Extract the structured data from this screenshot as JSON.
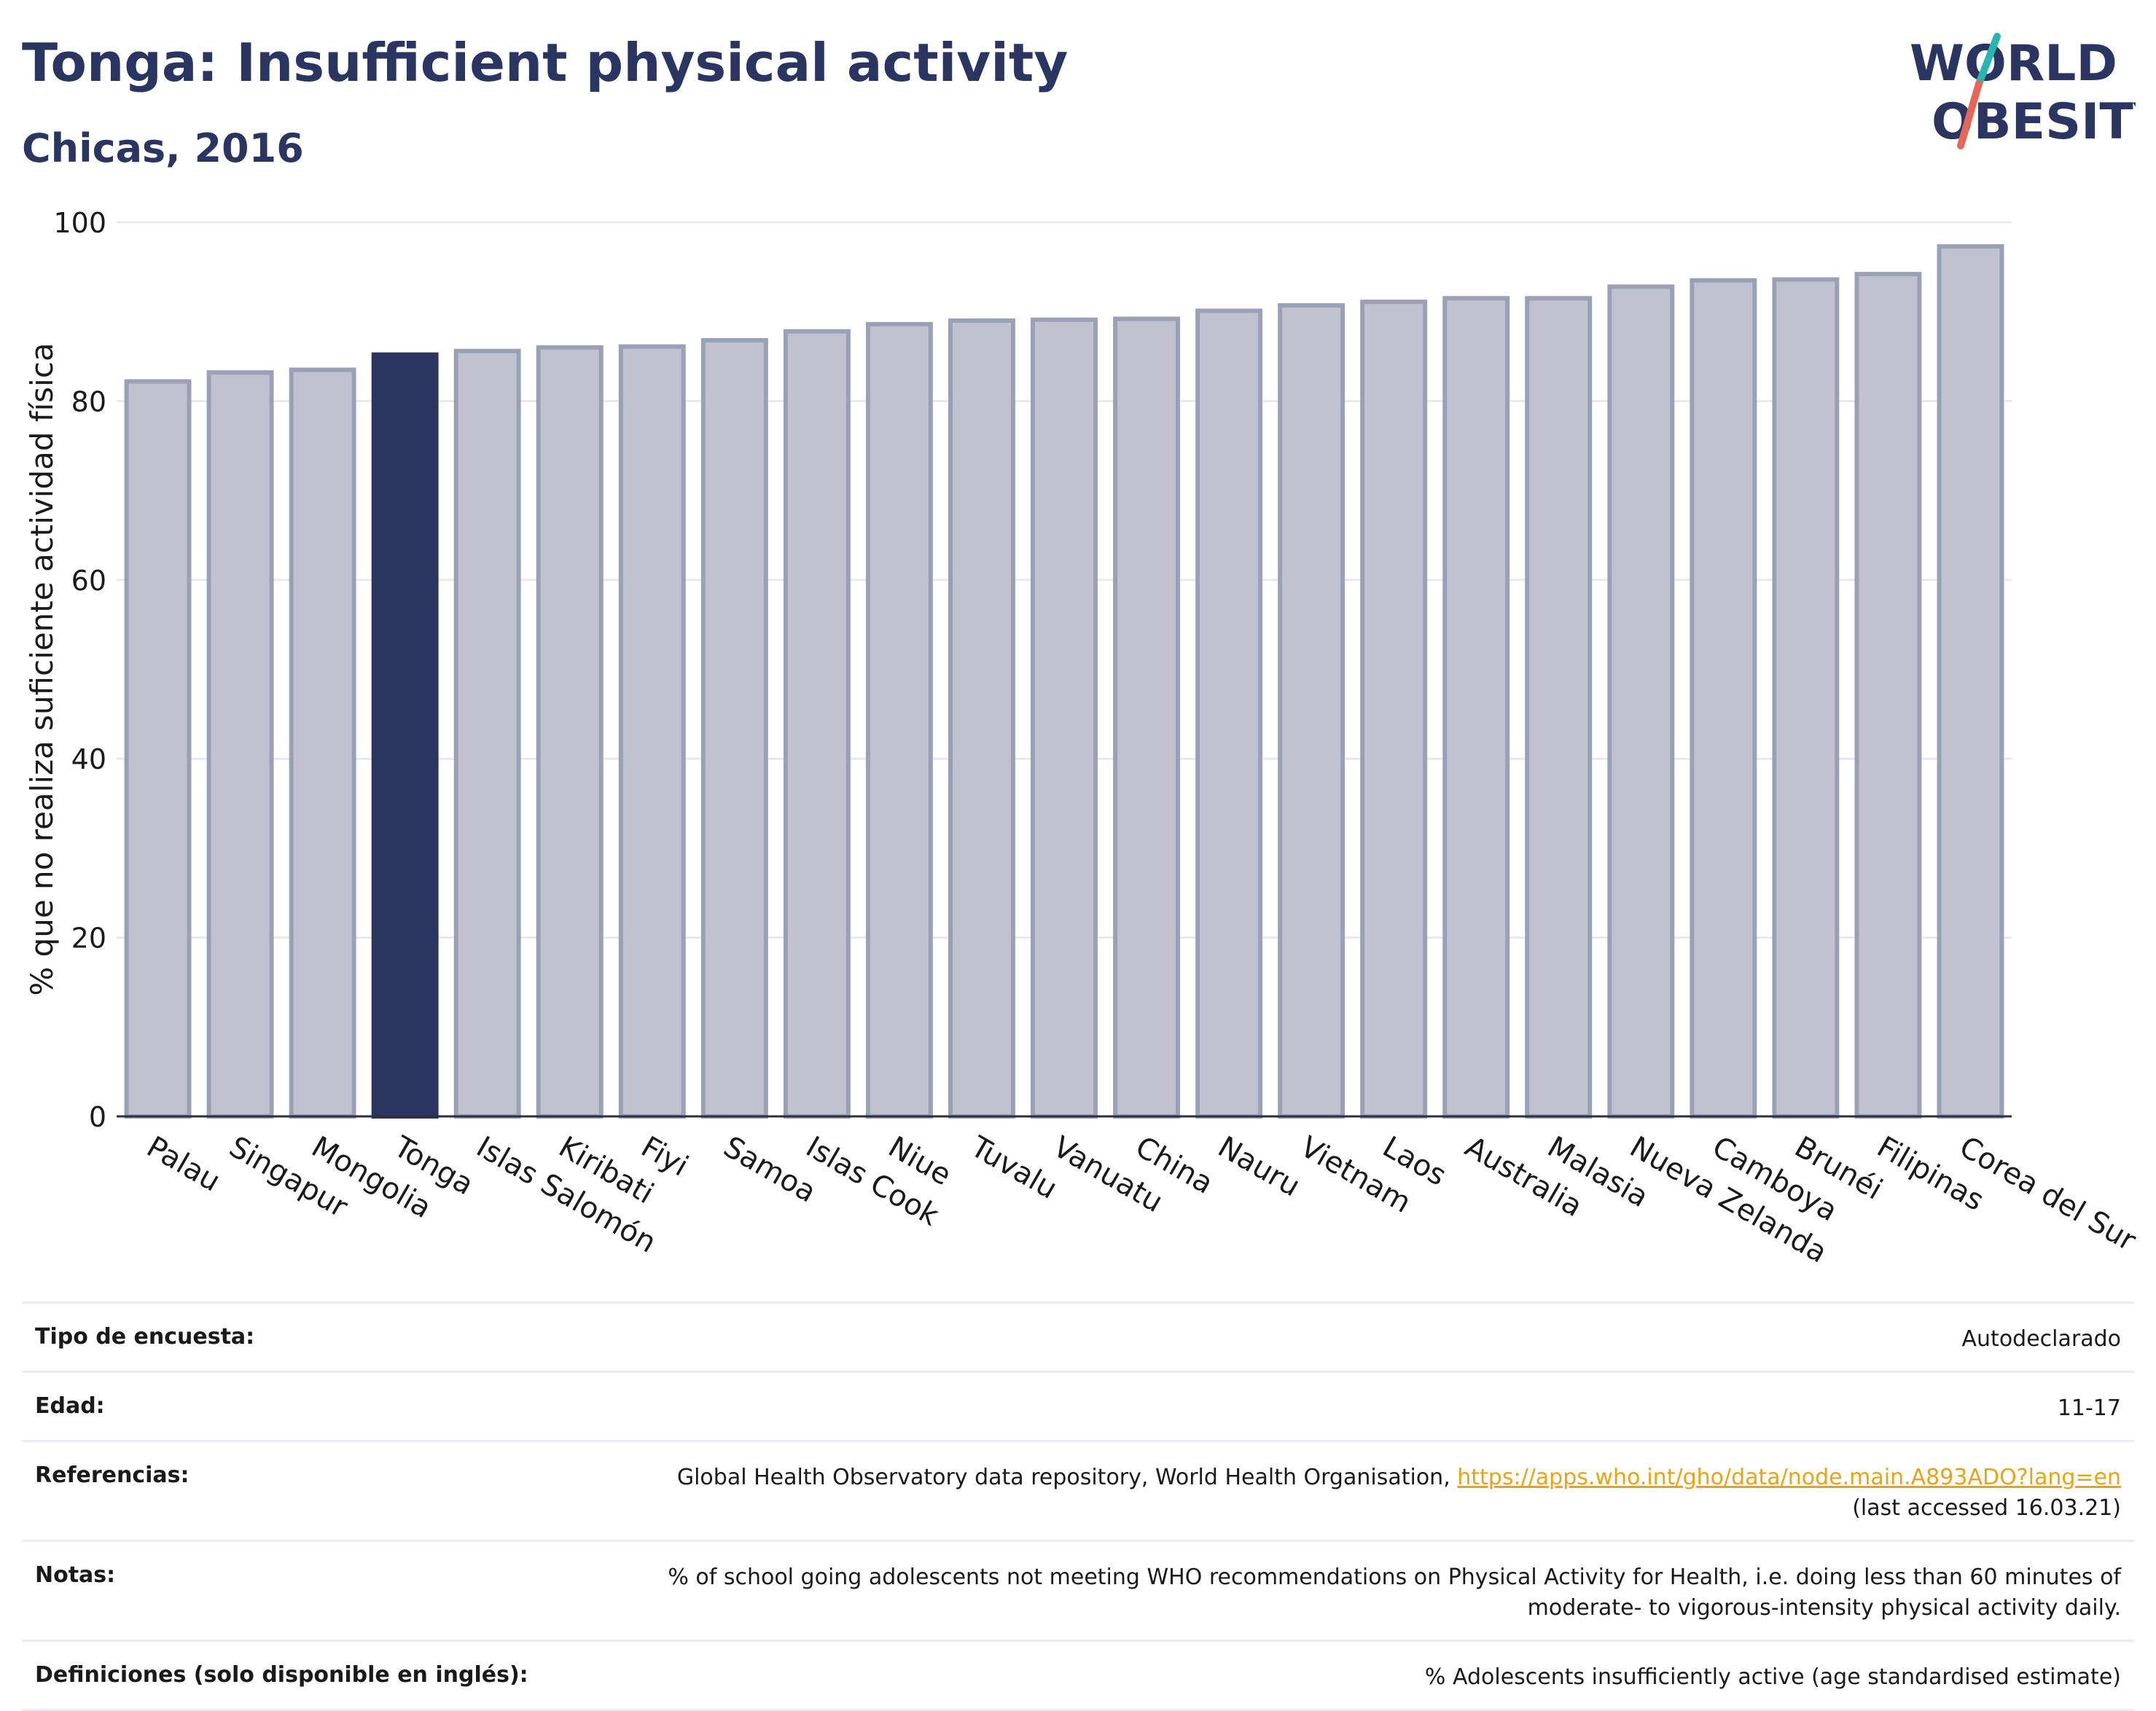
{
  "header": {
    "title": "Tonga: Insufficient physical activity",
    "subtitle": "Chicas, 2016"
  },
  "logo": {
    "line1": "WORLD",
    "line2": "OBESITY"
  },
  "chart_data": {
    "type": "bar",
    "ylabel": "% que no realiza suficiente actividad física",
    "ylim": [
      0,
      100
    ],
    "yticks": [
      0,
      20,
      40,
      60,
      80,
      100
    ],
    "highlight": "Tonga",
    "colors": {
      "bar": "#c0c3cf",
      "bar_border": "#9aa0b6",
      "highlight": "#2b3560",
      "grid": "#e6e9ef",
      "axis": "#2a2f45"
    },
    "categories": [
      "Palau",
      "Singapur",
      "Mongolia",
      "Tonga",
      "Islas Salomón",
      "Kiribati",
      "Fiyi",
      "Samoa",
      "Islas Cook",
      "Niue",
      "Tuvalu",
      "Vanuatu",
      "China",
      "Nauru",
      "Vietnam",
      "Laos",
      "Australia",
      "Malasia",
      "Nueva Zelanda",
      "Camboya",
      "Brunéi",
      "Filipinas",
      "Corea del Sur"
    ],
    "values": [
      82.2,
      83.2,
      83.5,
      85.2,
      85.6,
      86.0,
      86.1,
      86.8,
      87.8,
      88.6,
      89.0,
      89.1,
      89.2,
      90.1,
      90.7,
      91.1,
      91.5,
      91.5,
      92.8,
      93.5,
      93.6,
      94.2,
      97.3
    ]
  },
  "info": {
    "survey": {
      "label": "Tipo de encuesta:",
      "value": "Autodeclarado"
    },
    "age": {
      "label": "Edad:",
      "value": "11-17"
    },
    "references": {
      "label": "Referencias:",
      "text": "Global Health Observatory data repository, World Health Organisation, ",
      "link": "https://apps.who.int/gho/data/node.main.A893ADO?lang=en",
      "accessed": "(last accessed 16.03.21)"
    },
    "notes": {
      "label": "Notas:",
      "line1": "% of school going adolescents not meeting WHO recommendations on Physical Activity for Health, i.e. doing less than 60 minutes of",
      "line2": "moderate- to vigorous-intensity physical activity daily."
    },
    "definitions": {
      "label": "Definiciones (solo disponible en inglés):",
      "value": "% Adolescents insufficiently active (age standardised estimate)"
    }
  }
}
